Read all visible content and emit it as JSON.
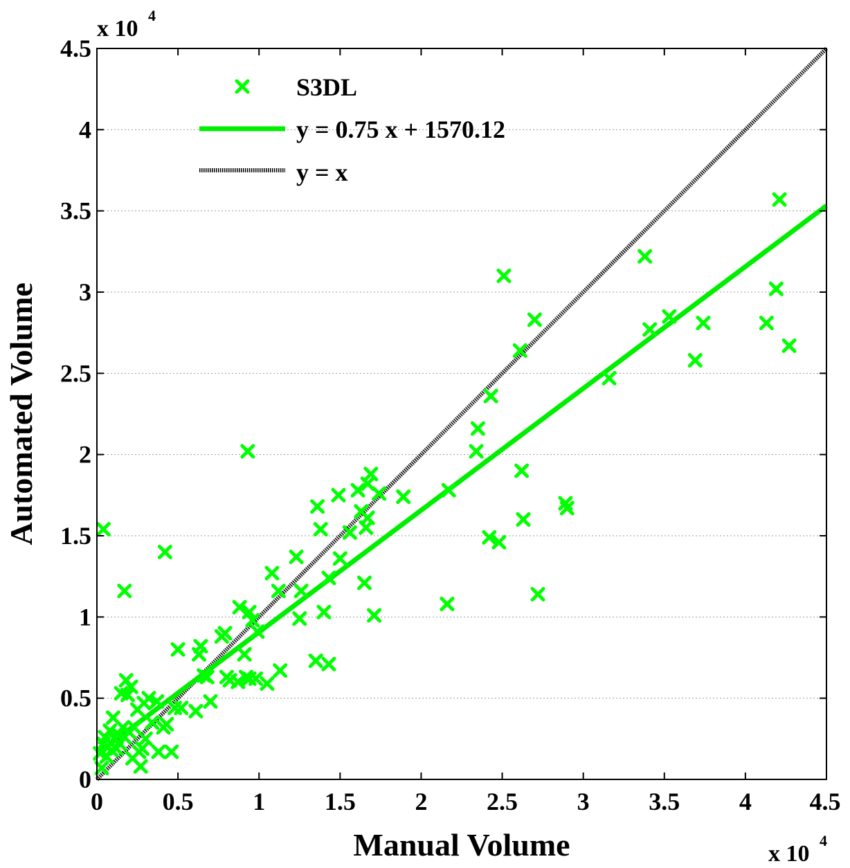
{
  "chart_data": {
    "type": "scatter",
    "xlabel": "Manual Volume",
    "ylabel": "Automated Volume",
    "x_exponent_label": "x 10",
    "y_exponent_label": "x 10",
    "exponent": "4",
    "xlim": [
      0,
      45000
    ],
    "ylim": [
      0,
      45000
    ],
    "xticks": [
      0,
      5000,
      10000,
      15000,
      20000,
      25000,
      30000,
      35000,
      40000,
      45000
    ],
    "xtick_labels": [
      "0",
      "0.5",
      "1",
      "1.5",
      "2",
      "2.5",
      "3",
      "3.5",
      "4",
      "4.5"
    ],
    "yticks": [
      0,
      5000,
      10000,
      15000,
      20000,
      25000,
      30000,
      35000,
      40000,
      45000
    ],
    "ytick_labels": [
      "0",
      "0.5",
      "1",
      "1.5",
      "2",
      "2.5",
      "3",
      "3.5",
      "4",
      "4.5"
    ],
    "grid": "horizontal dotted",
    "legend_position": "top-left",
    "colors": {
      "points": "#00ff00",
      "fit": "#00ee00",
      "identity": "#000000"
    },
    "series": [
      {
        "name": "S3DL",
        "kind": "scatter",
        "marker": "x",
        "points": [
          [
            400,
            15400
          ],
          [
            1700,
            11600
          ],
          [
            4200,
            14000
          ],
          [
            9300,
            20200
          ],
          [
            200,
            1600
          ],
          [
            300,
            700
          ],
          [
            400,
            2200
          ],
          [
            500,
            2600
          ],
          [
            600,
            1400
          ],
          [
            700,
            2000
          ],
          [
            800,
            3000
          ],
          [
            900,
            1800
          ],
          [
            1000,
            3800
          ],
          [
            1100,
            2500
          ],
          [
            1200,
            1900
          ],
          [
            1300,
            2800
          ],
          [
            1400,
            2200
          ],
          [
            1500,
            5300
          ],
          [
            1600,
            3200
          ],
          [
            1700,
            2600
          ],
          [
            1800,
            6100
          ],
          [
            1900,
            5200
          ],
          [
            2000,
            2900
          ],
          [
            2100,
            5700
          ],
          [
            2200,
            1300
          ],
          [
            2300,
            3200
          ],
          [
            2500,
            4300
          ],
          [
            2600,
            1700
          ],
          [
            2700,
            800
          ],
          [
            2800,
            1900
          ],
          [
            2900,
            4700
          ],
          [
            3000,
            2500
          ],
          [
            3200,
            5000
          ],
          [
            3400,
            3500
          ],
          [
            3700,
            4800
          ],
          [
            3800,
            1700
          ],
          [
            4100,
            3200
          ],
          [
            4300,
            3400
          ],
          [
            4600,
            1700
          ],
          [
            4800,
            4400
          ],
          [
            5000,
            8000
          ],
          [
            5200,
            4400
          ],
          [
            6100,
            4200
          ],
          [
            6300,
            7700
          ],
          [
            6400,
            8200
          ],
          [
            6600,
            6400
          ],
          [
            6800,
            6300
          ],
          [
            7000,
            4800
          ],
          [
            7700,
            8800
          ],
          [
            7900,
            9000
          ],
          [
            8000,
            6300
          ],
          [
            8200,
            6100
          ],
          [
            8700,
            6000
          ],
          [
            8800,
            10600
          ],
          [
            9100,
            7700
          ],
          [
            9200,
            6300
          ],
          [
            9400,
            6200
          ],
          [
            9400,
            10300
          ],
          [
            9600,
            9800
          ],
          [
            9800,
            6200
          ],
          [
            9900,
            9100
          ],
          [
            10500,
            5900
          ],
          [
            10800,
            12700
          ],
          [
            11200,
            11600
          ],
          [
            11300,
            6700
          ],
          [
            12300,
            13700
          ],
          [
            12500,
            9900
          ],
          [
            12600,
            11600
          ],
          [
            13500,
            7300
          ],
          [
            13600,
            16800
          ],
          [
            13800,
            15400
          ],
          [
            14000,
            10300
          ],
          [
            14300,
            7100
          ],
          [
            14300,
            12400
          ],
          [
            14900,
            17500
          ],
          [
            15000,
            13600
          ],
          [
            15600,
            15200
          ],
          [
            16100,
            17800
          ],
          [
            16300,
            16500
          ],
          [
            16500,
            12100
          ],
          [
            16600,
            15500
          ],
          [
            16700,
            16100
          ],
          [
            16700,
            18200
          ],
          [
            16900,
            18800
          ],
          [
            17100,
            10100
          ],
          [
            17400,
            17600
          ],
          [
            18900,
            17400
          ],
          [
            21600,
            10800
          ],
          [
            21700,
            17800
          ],
          [
            23400,
            20200
          ],
          [
            23500,
            21600
          ],
          [
            24200,
            14900
          ],
          [
            24300,
            23600
          ],
          [
            24800,
            14600
          ],
          [
            25100,
            31000
          ],
          [
            26100,
            26400
          ],
          [
            26200,
            19000
          ],
          [
            26300,
            16000
          ],
          [
            27000,
            28300
          ],
          [
            27200,
            11400
          ],
          [
            28900,
            17000
          ],
          [
            29000,
            16700
          ],
          [
            31600,
            24700
          ],
          [
            33800,
            32200
          ],
          [
            34100,
            27700
          ],
          [
            35300,
            28500
          ],
          [
            36900,
            25800
          ],
          [
            37400,
            28100
          ],
          [
            41300,
            28100
          ],
          [
            41900,
            30200
          ],
          [
            42100,
            35700
          ],
          [
            42700,
            26700
          ]
        ]
      },
      {
        "name": "y = 0.75 x + 1570.12",
        "kind": "line",
        "slope": 0.75,
        "intercept": 1570.12
      },
      {
        "name": "y = x",
        "kind": "line",
        "slope": 1,
        "intercept": 0
      }
    ]
  }
}
